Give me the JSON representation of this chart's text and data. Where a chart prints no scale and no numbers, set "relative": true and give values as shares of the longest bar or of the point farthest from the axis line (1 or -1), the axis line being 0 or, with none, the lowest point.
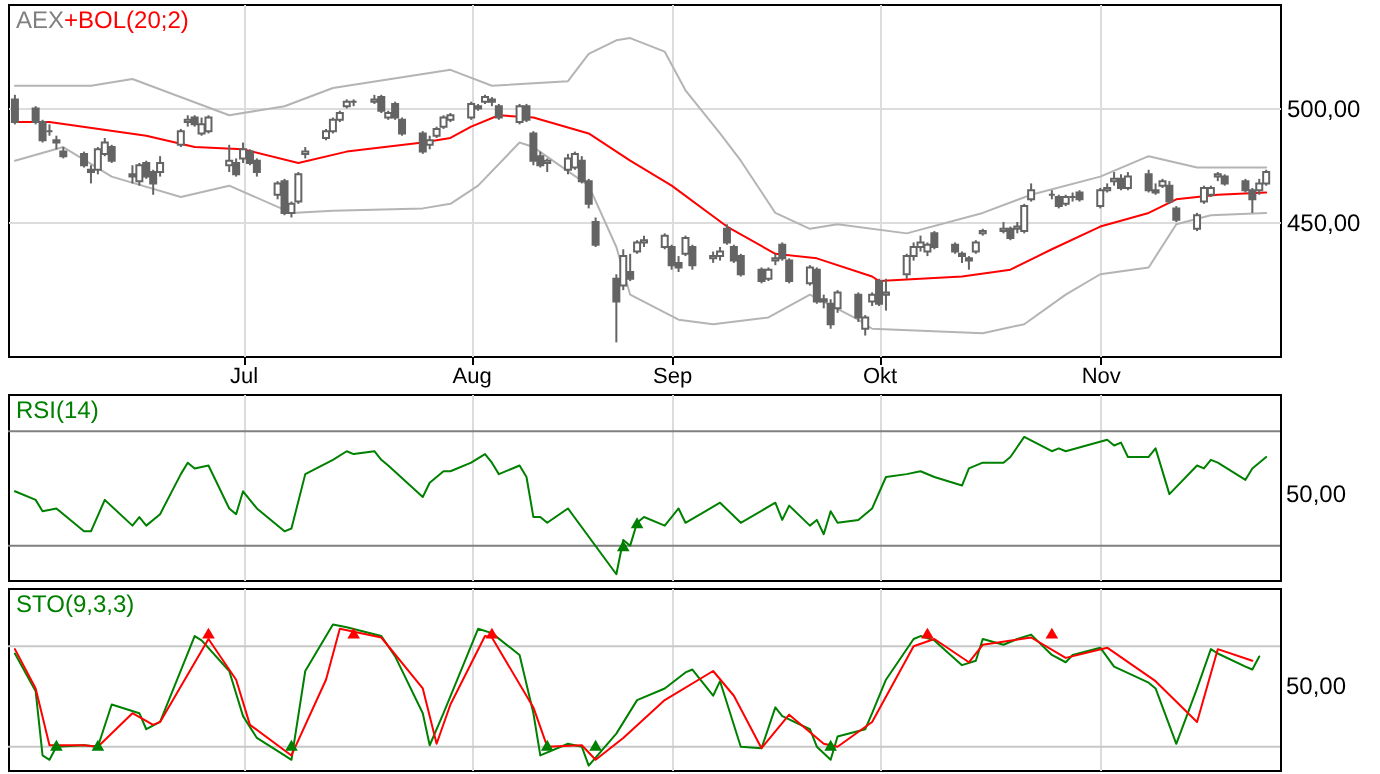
{
  "chart_data": [
    {
      "type": "candlestick",
      "title": "AEX",
      "color": "#646464",
      "legend": "top left",
      "grid": true,
      "x": [
        "--05-29",
        "--06-01",
        "--06-02",
        "--06-03",
        "--06-04",
        "--06-05",
        "--06-08",
        "--06-09",
        "--06-10",
        "--06-11",
        "--06-12",
        "--06-15",
        "--06-16",
        "--06-17",
        "--06-18",
        "--06-19",
        "--06-22",
        "--06-23",
        "--06-24",
        "--06-25",
        "--06-26",
        "--06-29",
        "--06-30",
        "--07-01",
        "--07-02",
        "--07-03",
        "--07-06",
        "--07-07",
        "--07-08",
        "--07-09",
        "--07-10",
        "--07-13",
        "--07-14",
        "--07-15",
        "--07-16",
        "--07-17",
        "--07-20",
        "--07-21",
        "--07-22",
        "--07-23",
        "--07-24",
        "--07-27",
        "--07-28",
        "--07-29",
        "--07-30",
        "--07-31",
        "--08-03",
        "--08-04",
        "--08-05",
        "--08-06",
        "--08-07",
        "--08-10",
        "--08-11",
        "--08-12",
        "--08-13",
        "--08-14",
        "--08-17",
        "--08-18",
        "--08-19",
        "--08-20",
        "--08-21",
        "--08-24",
        "--08-25",
        "--08-26",
        "--08-27",
        "--08-28",
        "--08-31",
        "--09-01",
        "--09-02",
        "--09-03",
        "--09-04",
        "--09-07",
        "--09-08",
        "--09-09",
        "--09-10",
        "--09-11",
        "--09-14",
        "--09-15",
        "--09-16",
        "--09-17",
        "--09-18",
        "--09-21",
        "--09-22",
        "--09-23",
        "--09-24",
        "--09-25",
        "--09-28",
        "--09-29",
        "--09-30",
        "--10-01",
        "--10-02",
        "--10-05",
        "--10-06",
        "--10-07",
        "--10-08",
        "--10-09",
        "--10-12",
        "--10-13",
        "--10-14",
        "--10-15",
        "--10-16",
        "--10-19",
        "--10-20",
        "--10-21",
        "--10-22",
        "--10-23",
        "--10-26",
        "--10-27",
        "--10-28",
        "--10-29",
        "--10-30",
        "--11-02",
        "--11-03",
        "--11-04",
        "--11-05",
        "--11-06",
        "--11-09",
        "--11-10",
        "--11-11",
        "--11-12",
        "--11-13",
        "--11-16",
        "--11-17",
        "--11-18",
        "--11-19",
        "--11-20",
        "--11-23",
        "--11-24",
        "--11-25",
        "--11-26"
      ],
      "ohlc": [
        [
          504,
          506,
          493,
          494
        ],
        [
          500,
          501,
          493,
          494
        ],
        [
          494,
          495,
          485,
          486
        ],
        [
          490,
          493,
          488,
          490
        ],
        [
          486,
          488,
          482,
          485
        ],
        [
          481,
          483,
          478,
          479
        ],
        [
          480,
          481,
          474,
          475
        ],
        [
          473,
          475,
          467,
          472
        ],
        [
          473,
          483,
          471,
          482
        ],
        [
          480,
          487,
          479,
          485
        ],
        [
          483,
          484,
          476,
          477
        ],
        [
          471,
          475,
          467,
          470
        ],
        [
          468,
          476,
          466,
          475
        ],
        [
          476,
          477,
          469,
          470
        ],
        [
          472,
          473,
          462,
          467
        ],
        [
          472,
          479,
          470,
          476
        ],
        [
          484,
          491,
          483,
          490
        ],
        [
          494,
          497,
          492,
          495
        ],
        [
          496,
          497,
          492,
          493
        ],
        [
          489,
          496,
          488,
          493
        ],
        [
          490,
          497,
          489,
          496
        ],
        [
          475,
          484,
          472,
          477
        ],
        [
          476,
          478,
          470,
          471
        ],
        [
          478,
          485,
          476,
          482
        ],
        [
          481,
          482,
          475,
          476
        ],
        [
          477,
          478,
          470,
          472
        ],
        [
          462,
          468,
          460,
          467
        ],
        [
          468,
          469,
          453,
          454
        ],
        [
          454,
          459,
          452,
          458
        ],
        [
          459,
          472,
          458,
          471
        ],
        [
          480,
          483,
          478,
          481
        ],
        [
          487,
          491,
          486,
          490
        ],
        [
          490,
          496,
          489,
          495
        ],
        [
          495,
          499,
          494,
          498
        ],
        [
          501,
          504,
          500,
          503
        ],
        [
          503,
          504,
          501,
          503
        ],
        [
          503,
          506,
          502,
          504
        ],
        [
          505,
          506,
          498,
          499
        ],
        [
          496,
          499,
          495,
          498
        ],
        [
          502,
          503,
          495,
          496
        ],
        [
          495,
          496,
          488,
          489
        ],
        [
          489,
          490,
          480,
          481
        ],
        [
          484,
          488,
          482,
          486
        ],
        [
          488,
          492,
          487,
          491
        ],
        [
          492,
          497,
          491,
          496
        ],
        [
          495,
          498,
          494,
          497
        ],
        [
          496,
          503,
          495,
          502
        ],
        [
          501,
          502,
          499,
          500
        ],
        [
          503,
          506,
          502,
          505
        ],
        [
          504,
          505,
          501,
          503
        ],
        [
          501,
          502,
          495,
          496
        ],
        [
          494,
          502,
          493,
          501
        ],
        [
          501,
          502,
          494,
          495
        ],
        [
          489,
          490,
          475,
          477
        ],
        [
          479,
          481,
          474,
          475
        ],
        [
          476,
          478,
          472,
          477
        ],
        [
          473,
          480,
          471,
          478
        ],
        [
          474,
          481,
          473,
          480
        ],
        [
          477,
          479,
          467,
          468
        ],
        [
          468,
          469,
          456,
          458
        ],
        [
          450,
          452,
          439,
          440
        ],
        [
          425,
          427,
          397,
          415
        ],
        [
          422,
          438,
          420,
          435
        ],
        [
          428,
          436,
          424,
          425
        ],
        [
          437,
          442,
          436,
          441
        ],
        [
          441,
          444,
          439,
          442
        ],
        [
          439,
          445,
          438,
          444
        ],
        [
          439,
          440,
          429,
          431
        ],
        [
          432,
          435,
          428,
          430
        ],
        [
          436,
          444,
          435,
          443
        ],
        [
          439,
          440,
          429,
          431
        ],
        [
          434,
          437,
          432,
          435
        ],
        [
          435,
          439,
          433,
          437
        ],
        [
          447,
          449,
          440,
          441
        ],
        [
          439,
          440,
          432,
          433
        ],
        [
          435,
          436,
          426,
          427
        ],
        [
          429,
          430,
          423,
          424
        ],
        [
          425,
          430,
          424,
          429
        ],
        [
          433,
          436,
          431,
          434
        ],
        [
          440,
          441,
          433,
          434
        ],
        [
          433,
          434,
          423,
          424
        ],
        [
          423,
          431,
          422,
          430
        ],
        [
          429,
          430,
          414,
          415
        ],
        [
          416,
          418,
          412,
          415
        ],
        [
          414,
          416,
          403,
          405
        ],
        [
          412,
          420,
          410,
          419
        ],
        [
          418,
          419,
          406,
          408
        ],
        [
          403,
          409,
          400,
          408
        ],
        [
          415,
          419,
          413,
          418
        ],
        [
          424,
          425,
          413,
          414
        ],
        [
          418,
          425,
          411,
          419
        ],
        [
          427,
          436,
          425,
          435
        ],
        [
          435,
          441,
          433,
          439
        ],
        [
          439,
          444,
          437,
          441
        ],
        [
          437,
          441,
          435,
          440
        ],
        [
          445,
          446,
          438,
          439
        ],
        [
          440,
          441,
          436,
          437
        ],
        [
          436,
          437,
          432,
          435
        ],
        [
          434,
          435,
          429,
          433
        ],
        [
          437,
          442,
          436,
          441
        ],
        [
          445,
          447,
          444,
          446
        ],
        [
          446,
          450,
          445,
          447
        ],
        [
          447,
          448,
          442,
          443
        ],
        [
          447,
          450,
          445,
          448
        ],
        [
          446,
          458,
          445,
          457
        ],
        [
          460,
          467,
          459,
          464
        ],
        [
          462,
          464,
          460,
          462
        ],
        [
          461,
          462,
          456,
          457
        ],
        [
          458,
          462,
          457,
          461
        ],
        [
          461,
          463,
          459,
          461
        ],
        [
          463,
          464,
          459,
          460
        ],
        [
          457,
          465,
          456,
          464
        ],
        [
          464,
          467,
          463,
          465
        ],
        [
          468,
          472,
          466,
          469
        ],
        [
          469,
          471,
          464,
          465
        ],
        [
          465,
          472,
          464,
          470
        ],
        [
          471,
          473,
          463,
          464
        ],
        [
          464,
          467,
          462,
          463
        ],
        [
          466,
          469,
          465,
          468
        ],
        [
          466,
          468,
          458,
          459
        ],
        [
          456,
          457,
          450,
          451
        ],
        [
          447,
          454,
          446,
          453
        ],
        [
          459,
          466,
          458,
          465
        ],
        [
          462,
          466,
          461,
          465
        ],
        [
          470,
          472,
          468,
          471
        ],
        [
          470,
          471,
          466,
          467
        ],
        [
          468,
          469,
          463,
          464
        ],
        [
          464,
          465,
          454,
          460
        ],
        [
          464,
          469,
          462,
          467
        ],
        [
          467,
          473,
          466,
          472
        ]
      ],
      "series": [
        {
          "type": "line",
          "color": "#b4b4b4",
          "x": [
            "--05-29",
            "--06-09",
            "--06-15",
            "--06-29",
            "--07-07",
            "--07-14",
            "--07-31",
            "--08-06",
            "--08-17",
            "--08-20",
            "--08-24",
            "--08-26",
            "--08-31",
            "--09-03",
            "--09-08",
            "--09-11",
            "--09-16",
            "--09-21",
            "--09-25",
            "--10-05",
            "--10-16",
            "--10-23",
            "--11-02",
            "--11-09",
            "--11-16",
            "--11-26"
          ],
          "values": [
            510,
            510,
            513,
            497,
            501,
            509,
            517,
            510,
            512,
            524,
            530,
            531,
            525,
            508,
            489,
            477,
            454,
            447,
            449,
            445,
            454,
            462,
            470,
            479,
            474,
            474
          ]
        },
        {
          "type": "line",
          "color": "#b4b4b4",
          "x": [
            "--05-29",
            "--06-05",
            "--06-12",
            "--06-22",
            "--06-29",
            "--07-08",
            "--07-14",
            "--07-27",
            "--07-31",
            "--08-04",
            "--08-10",
            "--08-12",
            "--08-20",
            "--08-24",
            "--08-26",
            "--09-02",
            "--09-07",
            "--09-15",
            "--09-21",
            "--09-28",
            "--09-30",
            "--10-16",
            "--10-22",
            "--10-28",
            "--11-02",
            "--11-09",
            "--11-13",
            "--11-18",
            "--11-26"
          ],
          "values": [
            477,
            483,
            470,
            461,
            466,
            454,
            455,
            456,
            458,
            466,
            485,
            483,
            466,
            439,
            418,
            407,
            405,
            408,
            418,
            407,
            403,
            401,
            405,
            418,
            427,
            430,
            449,
            453,
            454
          ]
        },
        {
          "type": "line",
          "name": "+BOL(20;2)",
          "color": "#ff0000",
          "x": [
            "--05-29",
            "--06-03",
            "--06-17",
            "--06-24",
            "--07-01",
            "--07-09",
            "--07-16",
            "--07-27",
            "--07-31",
            "--08-03",
            "--08-07",
            "--08-12",
            "--08-20",
            "--08-26",
            "--09-01",
            "--09-09",
            "--09-16",
            "--09-22",
            "--09-30",
            "--10-01",
            "--10-13",
            "--10-20",
            "--10-26",
            "--11-02",
            "--11-09",
            "--11-13",
            "--11-19",
            "--11-26"
          ],
          "values": [
            494,
            494,
            488,
            483,
            482,
            476,
            481,
            485,
            487,
            492,
            497,
            496,
            489,
            477,
            466,
            448,
            436,
            434,
            426,
            424,
            426,
            429,
            438,
            448,
            454,
            460,
            462,
            463
          ]
        }
      ],
      "xlim": [
        "--05-28",
        "--11-28"
      ],
      "xticks": [
        {
          "value": "--07-01",
          "label": "Jul"
        },
        {
          "value": "--08-03",
          "label": "Aug"
        },
        {
          "value": "--09-01",
          "label": "Sep"
        },
        {
          "value": "--10-01",
          "label": "Okt"
        },
        {
          "value": "--11-02",
          "label": "Nov"
        }
      ],
      "ylim": [
        391,
        546
      ],
      "yticks": [
        {
          "value": 450,
          "label": "450,00"
        },
        {
          "value": 500,
          "label": "500,00"
        }
      ]
    },
    {
      "type": "line",
      "legend": "top left",
      "grid": "x",
      "relative": true,
      "tick_labels": false,
      "annotations": [
        "50,00"
      ],
      "series": [
        {
          "type": "line",
          "name": "RSI(14)",
          "color": "#008000",
          "x": [
            "--05-29",
            "--06-01",
            "--06-02",
            "--06-04",
            "--06-08",
            "--06-09",
            "--06-11",
            "--06-15",
            "--06-16",
            "--06-17",
            "--06-19",
            "--06-22",
            "--06-23",
            "--06-24",
            "--06-26",
            "--06-29",
            "--06-30",
            "--07-01",
            "--07-03",
            "--07-07",
            "--07-08",
            "--07-10",
            "--07-14",
            "--07-16",
            "--07-17",
            "--07-20",
            "--07-21",
            "--07-22",
            "--07-27",
            "--07-28",
            "--07-30",
            "--07-31",
            "--08-03",
            "--08-05",
            "--08-06",
            "--08-07",
            "--08-10",
            "--08-11",
            "--08-12",
            "--08-13",
            "--08-14",
            "--08-17",
            "--08-24",
            "--08-25",
            "--08-26",
            "--08-27",
            "--08-28",
            "--08-31",
            "--09-02",
            "--09-03",
            "--09-08",
            "--09-11",
            "--09-16",
            "--09-17",
            "--09-18",
            "--09-21",
            "--09-22",
            "--09-23",
            "--09-24",
            "--09-25",
            "--09-28",
            "--09-30",
            "--10-02",
            "--10-05",
            "--10-07",
            "--10-09",
            "--10-13",
            "--10-14",
            "--10-16",
            "--10-19",
            "--10-20",
            "--10-22",
            "--10-26",
            "--10-27",
            "--10-28",
            "--11-03",
            "--11-04",
            "--11-05",
            "--11-06",
            "--11-09",
            "--11-10",
            "--11-12",
            "--11-16",
            "--11-17",
            "--11-18",
            "--11-19",
            "--11-23",
            "--11-24",
            "--11-26"
          ],
          "values": [
            0.62,
            0.56,
            0.48,
            0.5,
            0.34,
            0.34,
            0.56,
            0.38,
            0.44,
            0.38,
            0.46,
            0.74,
            0.82,
            0.78,
            0.8,
            0.5,
            0.46,
            0.62,
            0.5,
            0.34,
            0.36,
            0.74,
            0.84,
            0.9,
            0.88,
            0.9,
            0.84,
            0.8,
            0.58,
            0.68,
            0.76,
            0.76,
            0.82,
            0.88,
            0.82,
            0.74,
            0.8,
            0.72,
            0.44,
            0.44,
            0.4,
            0.5,
            0.04,
            0.28,
            0.24,
            0.4,
            0.44,
            0.38,
            0.5,
            0.4,
            0.54,
            0.4,
            0.54,
            0.42,
            0.52,
            0.38,
            0.42,
            0.32,
            0.48,
            0.4,
            0.42,
            0.5,
            0.72,
            0.74,
            0.76,
            0.72,
            0.66,
            0.78,
            0.82,
            0.82,
            0.86,
            1,
            0.9,
            0.92,
            0.9,
            0.98,
            0.94,
            0.96,
            0.86,
            0.86,
            0.92,
            0.6,
            0.8,
            0.78,
            0.84,
            0.82,
            0.7,
            0.78,
            0.86
          ]
        },
        {
          "type": "scatter",
          "color": "#008000",
          "marker": "triangle",
          "x": [
            "--08-25",
            "--08-27"
          ],
          "values": [
            0.24,
            0.4
          ]
        }
      ],
      "ref_lines": [
        {
          "axis": "y",
          "value": 1.04,
          "color": "#808080"
        },
        {
          "axis": "y",
          "value": 0.24,
          "color": "#808080"
        }
      ],
      "xlim": [
        "--05-28",
        "--11-28"
      ],
      "xticks": [
        {
          "value": "--07-01",
          "label": null
        },
        {
          "value": "--08-03",
          "label": null
        },
        {
          "value": "--09-01",
          "label": null
        },
        {
          "value": "--10-01",
          "label": null
        },
        {
          "value": "--11-02",
          "label": null
        }
      ]
    },
    {
      "type": "line",
      "legend": "top left",
      "grid": "x",
      "relative": true,
      "tick_labels": false,
      "annotations": [
        "50,00"
      ],
      "series": [
        {
          "type": "line",
          "name": "STO(9,3,3)",
          "color": "#008000",
          "x": [
            "--05-29",
            "--06-01",
            "--06-02",
            "--06-03",
            "--06-04",
            "--06-08",
            "--06-10",
            "--06-12",
            "--06-16",
            "--06-17",
            "--06-19",
            "--06-24",
            "--06-25",
            "--06-29",
            "--07-01",
            "--07-03",
            "--07-07",
            "--07-08",
            "--07-10",
            "--07-14",
            "--07-16",
            "--07-21",
            "--07-23",
            "--07-27",
            "--07-28",
            "--07-30",
            "--08-04",
            "--08-06",
            "--08-10",
            "--08-12",
            "--08-13",
            "--08-17",
            "--08-19",
            "--08-20",
            "--08-24",
            "--08-27",
            "--08-31",
            "--09-03",
            "--09-04",
            "--09-07",
            "--09-08",
            "--09-11",
            "--09-14",
            "--09-16",
            "--09-17",
            "--09-21",
            "--09-22",
            "--09-24",
            "--09-25",
            "--09-29",
            "--09-30",
            "--10-02",
            "--10-06",
            "--10-07",
            "--10-09",
            "--10-13",
            "--10-15",
            "--10-16",
            "--10-19",
            "--10-21",
            "--10-23",
            "--10-26",
            "--10-28",
            "--10-29",
            "--11-02",
            "--11-04",
            "--11-09",
            "--11-10",
            "--11-13",
            "--11-16",
            "--11-18",
            "--11-19",
            "--11-23",
            "--11-24",
            "--11-25"
          ],
          "values": [
            0.8,
            0.54,
            0.1,
            0.07,
            0.16,
            0.17,
            0.16,
            0.45,
            0.39,
            0.28,
            0.33,
            0.92,
            0.89,
            0.68,
            0.37,
            0.22,
            0.1,
            0.07,
            0.68,
            1,
            0.98,
            0.92,
            0.78,
            0.39,
            0.17,
            0.39,
            0.97,
            0.94,
            0.79,
            0.39,
            0.1,
            0.18,
            0.16,
            0.03,
            0.25,
            0.48,
            0.56,
            0.67,
            0.69,
            0.51,
            0.61,
            0.16,
            0.15,
            0.43,
            0.37,
            0.28,
            0.16,
            0.07,
            0.23,
            0.28,
            0.39,
            0.62,
            0.9,
            0.92,
            0.89,
            0.72,
            0.75,
            0.9,
            0.86,
            0.9,
            0.93,
            0.79,
            0.74,
            0.79,
            0.84,
            0.71,
            0.6,
            0.56,
            0.18,
            0.56,
            0.83,
            0.8,
            0.71,
            0.69,
            0.78
          ]
        },
        {
          "type": "line",
          "color": "#ff0000",
          "x": [
            "--05-29",
            "--06-01",
            "--06-03",
            "--06-08",
            "--06-10",
            "--06-15",
            "--06-18",
            "--06-19",
            "--06-26",
            "--06-30",
            "--07-02",
            "--07-08",
            "--07-13",
            "--07-15",
            "--07-21",
            "--07-27",
            "--07-29",
            "--07-31",
            "--08-05",
            "--08-06",
            "--08-12",
            "--08-14",
            "--08-19",
            "--08-21",
            "--08-25",
            "--08-31",
            "--09-07",
            "--09-10",
            "--09-14",
            "--09-18",
            "--09-23",
            "--09-25",
            "--09-30",
            "--10-06",
            "--10-09",
            "--10-14",
            "--10-16",
            "--10-23",
            "--10-28",
            "--11-03",
            "--11-10",
            "--11-16",
            "--11-19",
            "--11-24"
          ],
          "values": [
            0.83,
            0.56,
            0.17,
            0.17,
            0.16,
            0.39,
            0.31,
            0.33,
            0.9,
            0.62,
            0.31,
            0.1,
            0.62,
            0.97,
            0.91,
            0.56,
            0.18,
            0.45,
            0.92,
            0.91,
            0.43,
            0.16,
            0.17,
            0.07,
            0.22,
            0.48,
            0.68,
            0.51,
            0.15,
            0.38,
            0.18,
            0.16,
            0.33,
            0.85,
            0.9,
            0.74,
            0.86,
            0.91,
            0.77,
            0.84,
            0.61,
            0.33,
            0.83,
            0.75
          ]
        },
        {
          "type": "scatter",
          "color": "#ff0000",
          "marker": "triangle",
          "x": [
            "--06-26",
            "--07-17",
            "--08-06",
            "--10-08",
            "--10-26"
          ],
          "values": [
            0.94,
            0.94,
            0.94,
            0.94,
            0.94
          ]
        },
        {
          "type": "scatter",
          "color": "#008000",
          "marker": "triangle",
          "x": [
            "--06-04",
            "--06-10",
            "--07-08",
            "--08-14",
            "--08-21",
            "--09-24"
          ],
          "values": [
            0.17,
            0.17,
            0.17,
            0.17,
            0.17,
            0.17
          ]
        }
      ],
      "ref_lines": [
        {
          "axis": "y",
          "value": 0.85,
          "color": "#c8c8c8"
        },
        {
          "axis": "y",
          "value": 0.16,
          "color": "#c8c8c8"
        }
      ],
      "xlim": [
        "--05-28",
        "--11-28"
      ],
      "xticks": [
        {
          "value": "--07-01",
          "label": null
        },
        {
          "value": "--08-03",
          "label": null
        },
        {
          "value": "--09-01",
          "label": null
        },
        {
          "value": "--10-01",
          "label": null
        },
        {
          "value": "--11-02",
          "label": null
        }
      ]
    }
  ]
}
